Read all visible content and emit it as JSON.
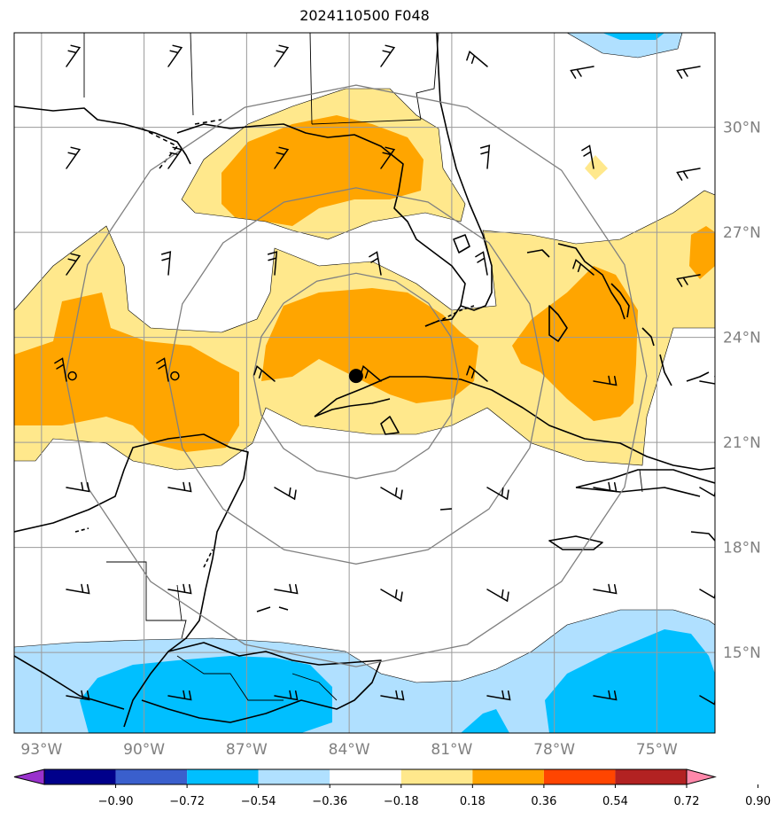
{
  "title": "2024110500 F048",
  "map": {
    "lon_range": [
      -93.8,
      -73.3
    ],
    "lat_range": [
      12.7,
      32.7
    ],
    "lat_ticks": [
      {
        "value": 30,
        "label": "30°N"
      },
      {
        "value": 27,
        "label": "27°N"
      },
      {
        "value": 24,
        "label": "24°N"
      },
      {
        "value": 21,
        "label": "21°N"
      },
      {
        "value": 18,
        "label": "18°N"
      },
      {
        "value": 15,
        "label": "15°N"
      }
    ],
    "lon_ticks": [
      {
        "value": -93,
        "label": "93°W"
      },
      {
        "value": -90,
        "label": "90°W"
      },
      {
        "value": -87,
        "label": "87°W"
      },
      {
        "value": -84,
        "label": "84°W"
      },
      {
        "value": -81,
        "label": "81°W"
      },
      {
        "value": -78,
        "label": "78°W"
      },
      {
        "value": -75,
        "label": "75°W"
      }
    ],
    "storm_center": {
      "lon": -83.8,
      "lat": 22.9
    },
    "range_rings_deg": [
      3,
      5.5,
      8.5
    ],
    "open_circle_markers": [
      {
        "lon": -92.1,
        "lat": 22.9
      },
      {
        "lon": -89.1,
        "lat": 22.9
      }
    ]
  },
  "colorbar": {
    "labels": [
      "−0.90",
      "−0.72",
      "−0.54",
      "−0.36",
      "−0.18",
      "0.18",
      "0.36",
      "0.54",
      "0.72",
      "0.90"
    ],
    "colors": [
      "#9932cc",
      "#00008b",
      "#3a5fcd",
      "#00bfff",
      "#b0e0ff",
      "#ffffff",
      "#ffe88c",
      "#ffa500",
      "#ff4500",
      "#b22222",
      "#ff88aa"
    ]
  },
  "field_colors": {
    "pos1": "#ffe88c",
    "pos2": "#ffa500",
    "neg1": "#b0e0ff",
    "neg2": "#00bfff"
  }
}
